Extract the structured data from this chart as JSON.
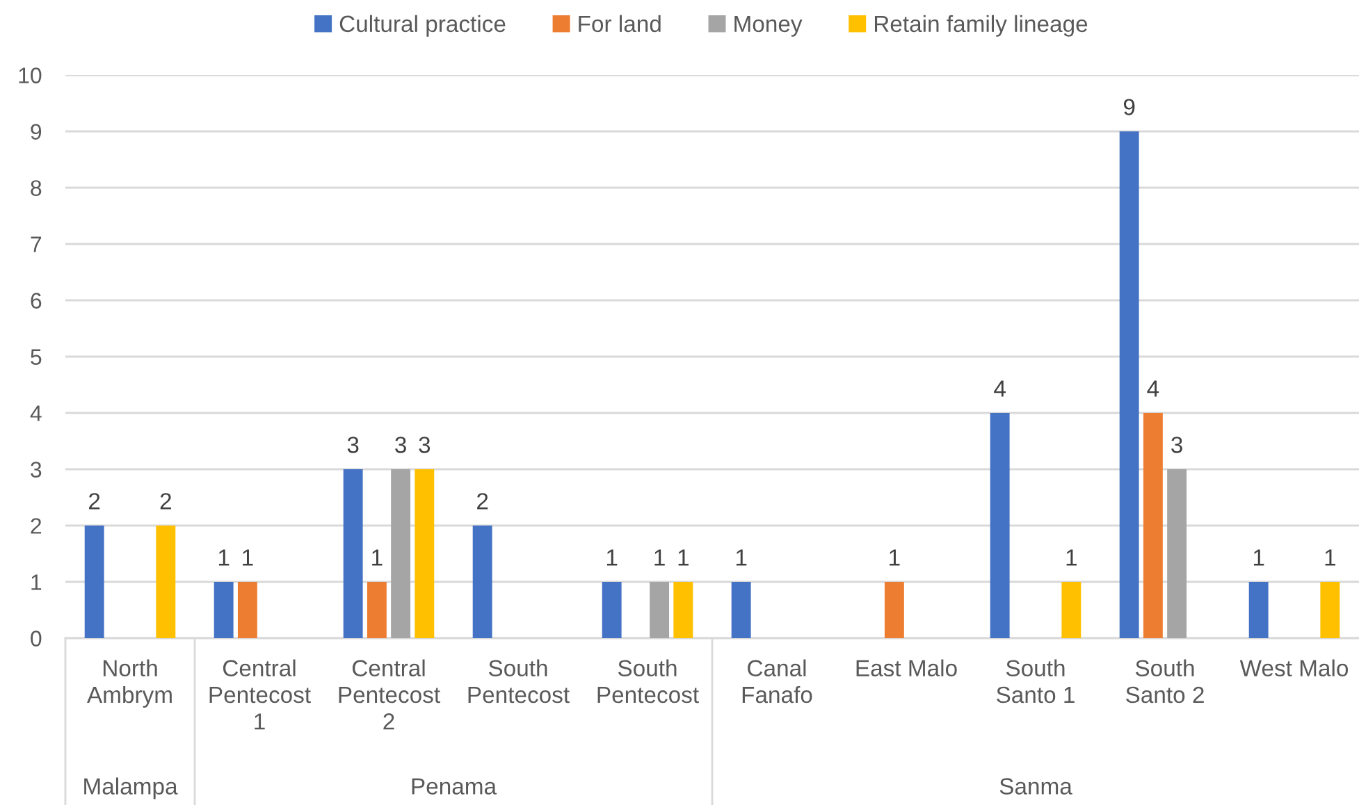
{
  "chart_data": {
    "type": "bar",
    "categories": [
      "North Ambrym",
      "Central Pentecost 1",
      "Central Pentecost 2",
      "South Pentecost",
      "South Pentecost",
      "Canal Fanafo",
      "East Malo",
      "South Santo 1",
      "South Santo 2",
      "West Malo"
    ],
    "series": [
      {
        "name": "Cultural practice",
        "color": "#4472c4",
        "values": [
          2,
          1,
          3,
          2,
          1,
          1,
          null,
          4,
          9,
          1
        ]
      },
      {
        "name": "For land",
        "color": "#ed7d31",
        "values": [
          null,
          1,
          1,
          null,
          null,
          null,
          1,
          null,
          4,
          null
        ]
      },
      {
        "name": "Money",
        "color": "#a5a5a5",
        "values": [
          null,
          null,
          3,
          null,
          1,
          null,
          null,
          null,
          3,
          null
        ]
      },
      {
        "name": "Retain family lineage",
        "color": "#ffc000",
        "values": [
          2,
          null,
          3,
          null,
          1,
          null,
          null,
          1,
          null,
          1
        ]
      }
    ],
    "ylim": [
      0,
      10
    ],
    "yticks": [
      0,
      1,
      2,
      3,
      4,
      5,
      6,
      7,
      8,
      9,
      10
    ],
    "grid": "y",
    "legend": "top",
    "data_labels": true,
    "annotations": [
      "Malampa",
      "Penama",
      "Sanma"
    ]
  }
}
